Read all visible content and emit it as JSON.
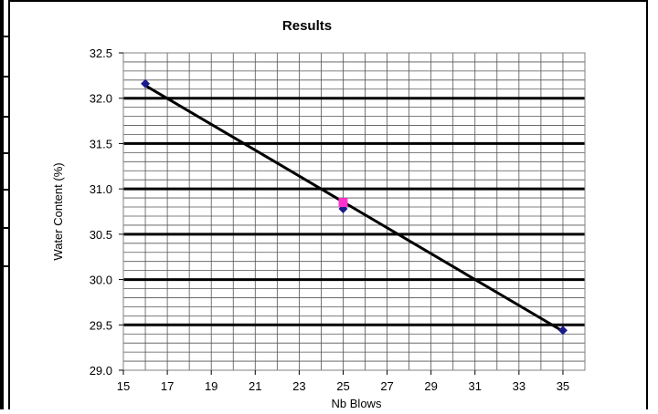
{
  "chart_data": {
    "type": "scatter",
    "title": "Results",
    "xlabel": "Nb Blows",
    "ylabel": "Water Content (%)",
    "xlim": [
      15,
      36
    ],
    "ylim": [
      29.0,
      32.5
    ],
    "x_ticks": [
      "15",
      "17",
      "19",
      "21",
      "23",
      "25",
      "27",
      "29",
      "31",
      "33",
      "35"
    ],
    "y_ticks": [
      "29.0",
      "29.5",
      "30.0",
      "30.5",
      "31.0",
      "31.5",
      "32.0",
      "32.5"
    ],
    "grid": true,
    "series": [
      {
        "type": "scatter",
        "marker": "diamond",
        "color": "#1a1a8c",
        "points": [
          {
            "x": 16,
            "y": 32.16
          },
          {
            "x": 25,
            "y": 30.78
          },
          {
            "x": 35,
            "y": 29.44
          }
        ]
      },
      {
        "type": "scatter",
        "marker": "square",
        "color": "#ff33cc",
        "points": [
          {
            "x": 25,
            "y": 30.85
          }
        ]
      },
      {
        "type": "line",
        "color": "#000000",
        "points": [
          {
            "x": 16,
            "y": 32.14
          },
          {
            "x": 35,
            "y": 29.43
          }
        ]
      }
    ]
  }
}
